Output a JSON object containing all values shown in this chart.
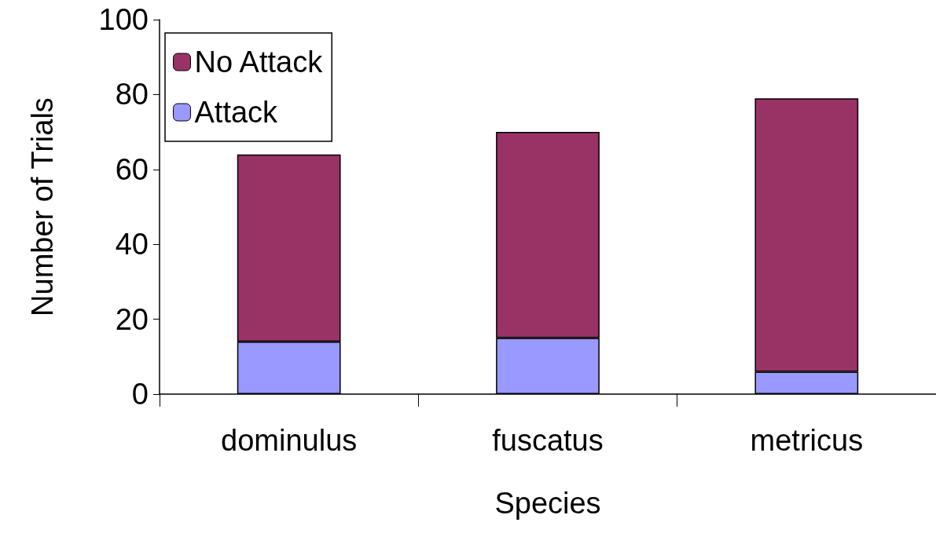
{
  "chart_data": {
    "type": "bar",
    "xlabel": "Species",
    "ylabel": "Number of Trials",
    "categories": [
      "dominulus",
      "fuscatus",
      "metricus"
    ],
    "stacked": true,
    "series": [
      {
        "name": "Attack",
        "color": "#9999ff",
        "values": [
          14,
          15,
          6
        ]
      },
      {
        "name": "No Attack",
        "color": "#993366",
        "values": [
          50,
          55,
          73
        ]
      }
    ],
    "ylim": [
      0,
      100
    ],
    "yticks": [
      0,
      20,
      40,
      60,
      80,
      100
    ],
    "grid": false,
    "legend": "top left"
  }
}
